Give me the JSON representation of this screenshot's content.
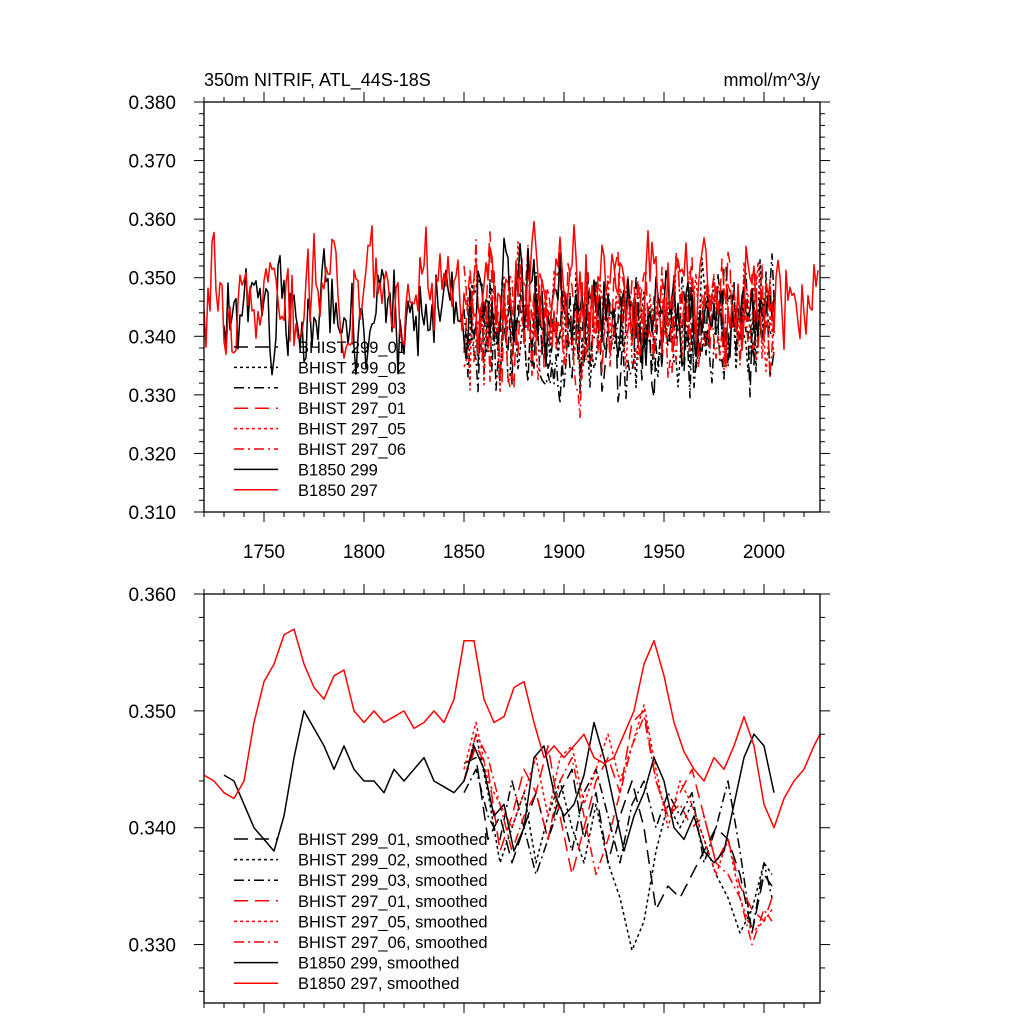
{
  "chart_data": [
    {
      "type": "line",
      "title_left": "350m NITRIF, ATL_44S-18S",
      "title_right": "mmol/m^3/y",
      "xlim": [
        1720,
        2028
      ],
      "ylim": [
        0.31,
        0.38
      ],
      "x_ticks": [
        1750,
        1800,
        1850,
        1900,
        1950,
        2000
      ],
      "x_tick_labels": [
        "1750",
        "1800",
        "1850",
        "1900",
        "1950",
        "2000"
      ],
      "y_ticks": [
        0.31,
        0.32,
        0.33,
        0.34,
        0.35,
        0.36,
        0.37,
        0.38
      ],
      "y_tick_labels": [
        "0.310",
        "0.320",
        "0.330",
        "0.340",
        "0.350",
        "0.360",
        "0.370",
        "0.380"
      ],
      "series": [
        {
          "name": "BHIST 299_01",
          "color": "#000000",
          "dash": "long-dash",
          "x_range": [
            1850,
            2005
          ],
          "mean": 0.341,
          "amplitude": 0.0085,
          "seed": 11
        },
        {
          "name": "BHIST 299_02",
          "color": "#000000",
          "dash": "dot",
          "x_range": [
            1850,
            2005
          ],
          "mean": 0.341,
          "amplitude": 0.0085,
          "seed": 12
        },
        {
          "name": "BHIST 299_03",
          "color": "#000000",
          "dash": "dash-dot",
          "x_range": [
            1850,
            2005
          ],
          "mean": 0.34,
          "amplitude": 0.0085,
          "seed": 13
        },
        {
          "name": "BHIST 297_01",
          "color": "#ff0000",
          "dash": "long-dash",
          "x_range": [
            1850,
            2005
          ],
          "mean": 0.344,
          "amplitude": 0.0085,
          "seed": 21
        },
        {
          "name": "BHIST 297_05",
          "color": "#ff0000",
          "dash": "dot",
          "x_range": [
            1850,
            2005
          ],
          "mean": 0.343,
          "amplitude": 0.0085,
          "seed": 22
        },
        {
          "name": "BHIST 297_06",
          "color": "#ff0000",
          "dash": "dash-dot",
          "x_range": [
            1850,
            2005
          ],
          "mean": 0.343,
          "amplitude": 0.0085,
          "seed": 23
        },
        {
          "name": "B1850 299",
          "color": "#000000",
          "dash": "solid",
          "x_range": [
            1730,
            2005
          ],
          "mean": 0.344,
          "amplitude": 0.0075,
          "seed": 31
        },
        {
          "name": "B1850 297",
          "color": "#ff0000",
          "dash": "solid",
          "x_range": [
            1720,
            2027
          ],
          "mean": 0.348,
          "amplitude": 0.0075,
          "seed": 32
        }
      ]
    },
    {
      "type": "line",
      "xlim": [
        1720,
        2028
      ],
      "ylim": [
        0.325,
        0.36
      ],
      "x_ticks": [
        1750,
        1800,
        1850,
        1900,
        1950,
        2000
      ],
      "y_ticks": [
        0.33,
        0.34,
        0.35,
        0.36
      ],
      "y_tick_labels": [
        "0.330",
        "0.340",
        "0.350",
        "0.360"
      ],
      "series": [
        {
          "name": "BHIST 299_01, smoothed",
          "color": "#000000",
          "dash": "long-dash",
          "x": [
            1850,
            1856,
            1862,
            1868,
            1874,
            1880,
            1886,
            1892,
            1898,
            1904,
            1910,
            1916,
            1922,
            1928,
            1934,
            1940,
            1946,
            1952,
            1958,
            1964,
            1970,
            1976,
            1982,
            1988,
            1994,
            2000,
            2004
          ],
          "y": [
            0.3455,
            0.346,
            0.339,
            0.341,
            0.337,
            0.34,
            0.343,
            0.339,
            0.343,
            0.345,
            0.339,
            0.343,
            0.337,
            0.341,
            0.344,
            0.34,
            0.333,
            0.335,
            0.334,
            0.336,
            0.338,
            0.34,
            0.339,
            0.336,
            0.331,
            0.336,
            0.335
          ]
        },
        {
          "name": "BHIST 299_02, smoothed",
          "color": "#000000",
          "dash": "dot",
          "x": [
            1850,
            1856,
            1862,
            1868,
            1874,
            1880,
            1886,
            1892,
            1898,
            1904,
            1910,
            1916,
            1922,
            1928,
            1934,
            1940,
            1946,
            1952,
            1958,
            1964,
            1970,
            1976,
            1982,
            1988,
            1994,
            2000,
            2004
          ],
          "y": [
            0.344,
            0.348,
            0.343,
            0.337,
            0.34,
            0.343,
            0.337,
            0.341,
            0.344,
            0.34,
            0.337,
            0.342,
            0.337,
            0.334,
            0.3295,
            0.332,
            0.338,
            0.342,
            0.34,
            0.342,
            0.339,
            0.336,
            0.334,
            0.331,
            0.333,
            0.337,
            0.336
          ]
        },
        {
          "name": "BHIST 299_03, smoothed",
          "color": "#000000",
          "dash": "dash-dot",
          "x": [
            1850,
            1856,
            1862,
            1868,
            1874,
            1880,
            1886,
            1892,
            1898,
            1904,
            1910,
            1916,
            1922,
            1928,
            1934,
            1940,
            1946,
            1952,
            1958,
            1964,
            1970,
            1976,
            1982,
            1988,
            1994,
            2000,
            2004
          ],
          "y": [
            0.343,
            0.345,
            0.341,
            0.339,
            0.344,
            0.34,
            0.336,
            0.339,
            0.342,
            0.338,
            0.343,
            0.345,
            0.341,
            0.337,
            0.342,
            0.344,
            0.34,
            0.343,
            0.341,
            0.343,
            0.337,
            0.34,
            0.344,
            0.338,
            0.331,
            0.337,
            0.334
          ]
        },
        {
          "name": "BHIST 297_01, smoothed",
          "color": "#ff0000",
          "dash": "long-dash",
          "x": [
            1850,
            1856,
            1862,
            1868,
            1874,
            1880,
            1886,
            1892,
            1898,
            1904,
            1910,
            1916,
            1922,
            1928,
            1934,
            1940,
            1946,
            1952,
            1958,
            1964,
            1970,
            1976,
            1982,
            1988,
            1994,
            2000,
            2004
          ],
          "y": [
            0.344,
            0.347,
            0.345,
            0.338,
            0.341,
            0.345,
            0.343,
            0.347,
            0.341,
            0.336,
            0.34,
            0.344,
            0.346,
            0.343,
            0.349,
            0.35,
            0.344,
            0.341,
            0.343,
            0.345,
            0.341,
            0.337,
            0.339,
            0.335,
            0.333,
            0.332,
            0.334
          ]
        },
        {
          "name": "BHIST 297_05, smoothed",
          "color": "#ff0000",
          "dash": "dot",
          "x": [
            1850,
            1856,
            1862,
            1868,
            1874,
            1880,
            1886,
            1892,
            1898,
            1904,
            1910,
            1916,
            1922,
            1928,
            1934,
            1940,
            1946,
            1952,
            1958,
            1964,
            1970,
            1976,
            1982,
            1988,
            1994,
            2000,
            2004
          ],
          "y": [
            0.345,
            0.349,
            0.344,
            0.342,
            0.34,
            0.343,
            0.346,
            0.341,
            0.346,
            0.347,
            0.342,
            0.345,
            0.348,
            0.344,
            0.347,
            0.3505,
            0.345,
            0.34,
            0.344,
            0.342,
            0.339,
            0.336,
            0.339,
            0.334,
            0.331,
            0.332,
            0.333
          ]
        },
        {
          "name": "BHIST 297_06, smoothed",
          "color": "#ff0000",
          "dash": "dash-dot",
          "x": [
            1850,
            1856,
            1862,
            1868,
            1874,
            1880,
            1886,
            1892,
            1898,
            1904,
            1910,
            1916,
            1922,
            1928,
            1934,
            1940,
            1946,
            1952,
            1958,
            1964,
            1970,
            1976,
            1982,
            1988,
            1994,
            2000,
            2004
          ],
          "y": [
            0.344,
            0.348,
            0.346,
            0.342,
            0.338,
            0.341,
            0.343,
            0.339,
            0.344,
            0.346,
            0.341,
            0.336,
            0.339,
            0.343,
            0.347,
            0.3495,
            0.344,
            0.341,
            0.342,
            0.34,
            0.341,
            0.337,
            0.336,
            0.334,
            0.33,
            0.333,
            0.332
          ]
        },
        {
          "name": "B1850 299, smoothed",
          "color": "#000000",
          "dash": "solid",
          "x": [
            1730,
            1735,
            1740,
            1745,
            1750,
            1755,
            1760,
            1765,
            1770,
            1775,
            1780,
            1785,
            1790,
            1795,
            1800,
            1805,
            1810,
            1815,
            1820,
            1825,
            1830,
            1835,
            1840,
            1845,
            1850,
            1855,
            1860,
            1865,
            1870,
            1875,
            1880,
            1885,
            1890,
            1895,
            1900,
            1905,
            1910,
            1915,
            1920,
            1925,
            1930,
            1935,
            1940,
            1945,
            1950,
            1955,
            1960,
            1965,
            1970,
            1975,
            1980,
            1985,
            1990,
            1995,
            2000,
            2005
          ],
          "y": [
            0.3445,
            0.344,
            0.342,
            0.34,
            0.339,
            0.338,
            0.341,
            0.346,
            0.35,
            0.3485,
            0.347,
            0.345,
            0.347,
            0.345,
            0.344,
            0.344,
            0.343,
            0.345,
            0.344,
            0.345,
            0.346,
            0.344,
            0.3435,
            0.343,
            0.344,
            0.347,
            0.345,
            0.341,
            0.342,
            0.338,
            0.34,
            0.346,
            0.347,
            0.343,
            0.341,
            0.342,
            0.3445,
            0.349,
            0.346,
            0.342,
            0.338,
            0.341,
            0.343,
            0.346,
            0.344,
            0.34,
            0.339,
            0.341,
            0.338,
            0.337,
            0.338,
            0.342,
            0.346,
            0.348,
            0.347,
            0.343
          ]
        },
        {
          "name": "B1850 297, smoothed",
          "color": "#ff0000",
          "dash": "solid",
          "x": [
            1720,
            1725,
            1730,
            1735,
            1740,
            1745,
            1750,
            1755,
            1760,
            1765,
            1770,
            1775,
            1780,
            1785,
            1790,
            1795,
            1800,
            1805,
            1810,
            1815,
            1820,
            1825,
            1830,
            1835,
            1840,
            1845,
            1850,
            1855,
            1860,
            1865,
            1870,
            1875,
            1880,
            1885,
            1890,
            1895,
            1900,
            1905,
            1910,
            1915,
            1920,
            1925,
            1930,
            1935,
            1940,
            1945,
            1950,
            1955,
            1960,
            1965,
            1970,
            1975,
            1980,
            1985,
            1990,
            1995,
            2000,
            2005,
            2010,
            2015,
            2020,
            2025,
            2028
          ],
          "y": [
            0.3445,
            0.344,
            0.343,
            0.3425,
            0.344,
            0.349,
            0.3525,
            0.354,
            0.3565,
            0.357,
            0.354,
            0.352,
            0.351,
            0.353,
            0.3535,
            0.35,
            0.349,
            0.35,
            0.349,
            0.3495,
            0.35,
            0.3485,
            0.349,
            0.35,
            0.349,
            0.351,
            0.356,
            0.356,
            0.351,
            0.349,
            0.3495,
            0.352,
            0.3525,
            0.349,
            0.346,
            0.347,
            0.346,
            0.347,
            0.348,
            0.346,
            0.3455,
            0.346,
            0.348,
            0.35,
            0.354,
            0.356,
            0.353,
            0.349,
            0.3465,
            0.345,
            0.344,
            0.346,
            0.345,
            0.347,
            0.3495,
            0.347,
            0.342,
            0.34,
            0.3425,
            0.344,
            0.345,
            0.347,
            0.348
          ]
        }
      ]
    }
  ]
}
